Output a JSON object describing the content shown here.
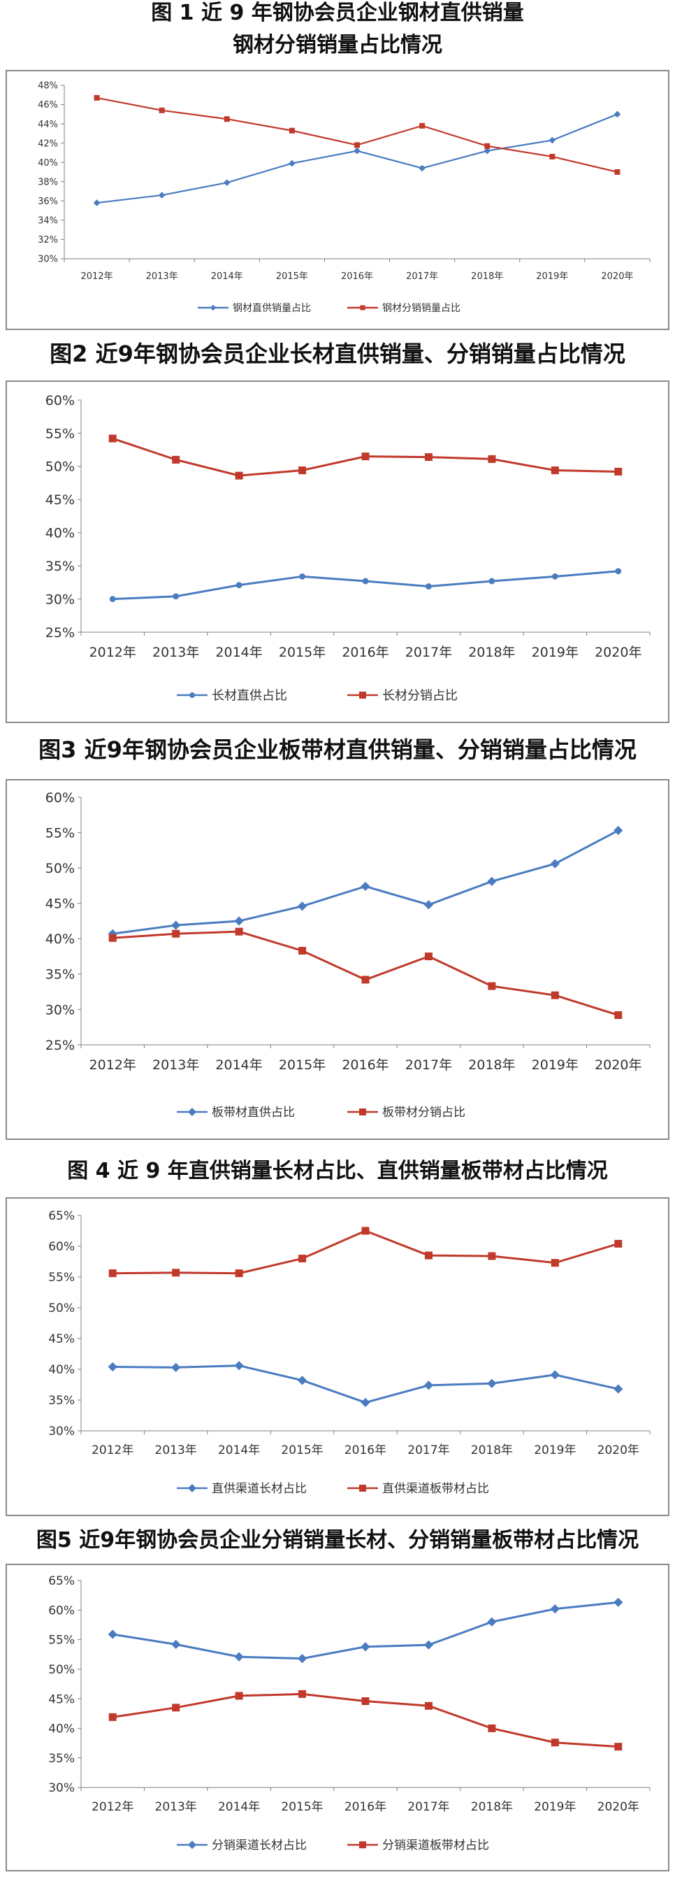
{
  "colors": {
    "blue": "#4A7CC0",
    "red": "#C0392B",
    "grid": "#d9d9d9",
    "axis": "#7f7f7f"
  },
  "chart_data": [
    {
      "type": "line",
      "title_line1": "图 1 近 9 年钢协会员企业钢材直供销量",
      "title_line2": "钢材分销销量占比情况",
      "categories": [
        "2012年",
        "2013年",
        "2014年",
        "2015年",
        "2016年",
        "2017年",
        "2018年",
        "2019年",
        "2020年"
      ],
      "yticks": [
        "30%",
        "32%",
        "34%",
        "36%",
        "38%",
        "40%",
        "42%",
        "44%",
        "46%",
        "48%"
      ],
      "ylim": [
        30,
        48
      ],
      "grid": false,
      "legend_position": "bottom",
      "series": [
        {
          "name": "钢材直供销量占比",
          "color": "#4A7CC0",
          "marker": "diamond",
          "values": [
            35.8,
            36.6,
            37.9,
            39.9,
            41.2,
            39.4,
            41.2,
            42.3,
            45.0
          ]
        },
        {
          "name": "钢材分销销量占比",
          "color": "#C0392B",
          "marker": "square",
          "values": [
            46.7,
            45.4,
            44.5,
            43.3,
            41.8,
            43.8,
            41.7,
            40.6,
            39.0
          ]
        }
      ]
    },
    {
      "type": "line",
      "title_line1": "图2 近9年钢协会员企业长材直供销量、分销销量占比情况",
      "categories": [
        "2012年",
        "2013年",
        "2014年",
        "2015年",
        "2016年",
        "2017年",
        "2018年",
        "2019年",
        "2020年"
      ],
      "yticks": [
        "25%",
        "30%",
        "35%",
        "40%",
        "45%",
        "50%",
        "55%",
        "60%"
      ],
      "ylim": [
        25,
        60
      ],
      "grid": false,
      "legend_position": "bottom",
      "series": [
        {
          "name": "长材直供占比",
          "color": "#4A7CC0",
          "marker": "circle",
          "values": [
            30.0,
            30.4,
            32.1,
            33.4,
            32.7,
            31.9,
            32.7,
            33.4,
            34.2
          ]
        },
        {
          "name": "长材分销占比",
          "color": "#C0392B",
          "marker": "square",
          "values": [
            54.2,
            51.0,
            48.6,
            49.4,
            51.5,
            51.4,
            51.1,
            49.4,
            49.2
          ]
        }
      ]
    },
    {
      "type": "line",
      "title_line1": "图3 近9年钢协会员企业板带材直供销量、分销销量占比情况",
      "categories": [
        "2012年",
        "2013年",
        "2014年",
        "2015年",
        "2016年",
        "2017年",
        "2018年",
        "2019年",
        "2020年"
      ],
      "yticks": [
        "25%",
        "30%",
        "35%",
        "40%",
        "45%",
        "50%",
        "55%",
        "60%"
      ],
      "ylim": [
        25,
        60
      ],
      "grid": false,
      "legend_position": "bottom",
      "series": [
        {
          "name": "板带材直供占比",
          "color": "#4A7CC0",
          "marker": "diamond",
          "values": [
            40.7,
            41.9,
            42.5,
            44.6,
            47.4,
            44.8,
            48.1,
            50.6,
            55.3
          ]
        },
        {
          "name": "板带材分销占比",
          "color": "#C0392B",
          "marker": "square",
          "values": [
            40.1,
            40.7,
            41.0,
            38.3,
            34.2,
            37.5,
            33.3,
            32.0,
            29.2
          ]
        }
      ]
    },
    {
      "type": "line",
      "title_line1": "图 4 近 9 年直供销量长材占比、直供销量板带材占比情况",
      "categories": [
        "2012年",
        "2013年",
        "2014年",
        "2015年",
        "2016年",
        "2017年",
        "2018年",
        "2019年",
        "2020年"
      ],
      "yticks": [
        "30%",
        "35%",
        "40%",
        "45%",
        "50%",
        "55%",
        "60%",
        "65%"
      ],
      "ylim": [
        30,
        65
      ],
      "grid": false,
      "legend_position": "bottom",
      "series": [
        {
          "name": "直供渠道长材占比",
          "color": "#4A7CC0",
          "marker": "diamond",
          "values": [
            40.4,
            40.3,
            40.6,
            38.2,
            34.6,
            37.4,
            37.7,
            39.1,
            36.8
          ]
        },
        {
          "name": "直供渠道板带材占比",
          "color": "#C0392B",
          "marker": "square",
          "values": [
            55.6,
            55.7,
            55.6,
            58.0,
            62.5,
            58.5,
            58.4,
            57.3,
            60.4
          ]
        }
      ]
    },
    {
      "type": "line",
      "title_line1": "图5  近9年钢协会员企业分销销量长材、分销销量板带材占比情况",
      "categories": [
        "2012年",
        "2013年",
        "2014年",
        "2015年",
        "2016年",
        "2017年",
        "2018年",
        "2019年",
        "2020年"
      ],
      "yticks": [
        "30%",
        "35%",
        "40%",
        "45%",
        "50%",
        "55%",
        "60%",
        "65%"
      ],
      "ylim": [
        30,
        65
      ],
      "grid": false,
      "legend_position": "bottom",
      "series": [
        {
          "name": "分销渠道长材占比",
          "color": "#4A7CC0",
          "marker": "diamond",
          "values": [
            55.9,
            54.2,
            52.1,
            51.8,
            53.8,
            54.1,
            58.0,
            60.2,
            61.3
          ]
        },
        {
          "name": "分销渠道板带材占比",
          "color": "#C0392B",
          "marker": "square",
          "values": [
            41.9,
            43.5,
            45.5,
            45.8,
            44.6,
            43.8,
            40.0,
            37.6,
            36.9
          ]
        }
      ]
    }
  ]
}
